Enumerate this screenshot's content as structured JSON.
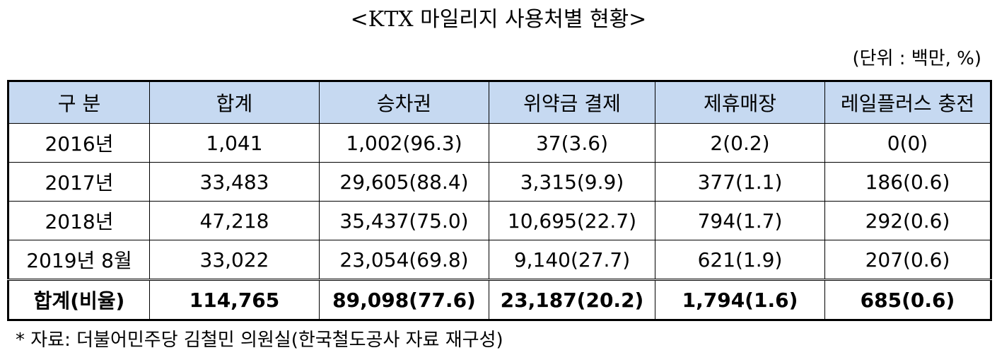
{
  "header": {
    "title": "<KTX 마일리지 사용처별 현황>",
    "unit": "(단위 : 백만, %)"
  },
  "table": {
    "columns": [
      "구 분",
      "합계",
      "승차권",
      "위약금 결제",
      "제휴매장",
      "레일플러스 충전"
    ],
    "rows": [
      [
        "2016년",
        "1,041",
        "1,002(96.3)",
        "37(3.6)",
        "2(0.2)",
        "0(0)"
      ],
      [
        "2017년",
        "33,483",
        "29,605(88.4)",
        "3,315(9.9)",
        "377(1.1)",
        "186(0.6)"
      ],
      [
        "2018년",
        "47,218",
        "35,437(75.0)",
        "10,695(22.7)",
        "794(1.7)",
        "292(0.6)"
      ],
      [
        "2019년 8월",
        "33,022",
        "23,054(69.8)",
        "9,140(27.7)",
        "621(1.9)",
        "207(0.6)"
      ],
      [
        "합계(비율)",
        "114,765",
        "89,098(77.6)",
        "23,187(20.2)",
        "1,794(1.6)",
        "685(0.6)"
      ]
    ]
  },
  "footnote": "* 자료: 더불어민주당 김철민 의원실(한국철도공사 자료 재구성)"
}
